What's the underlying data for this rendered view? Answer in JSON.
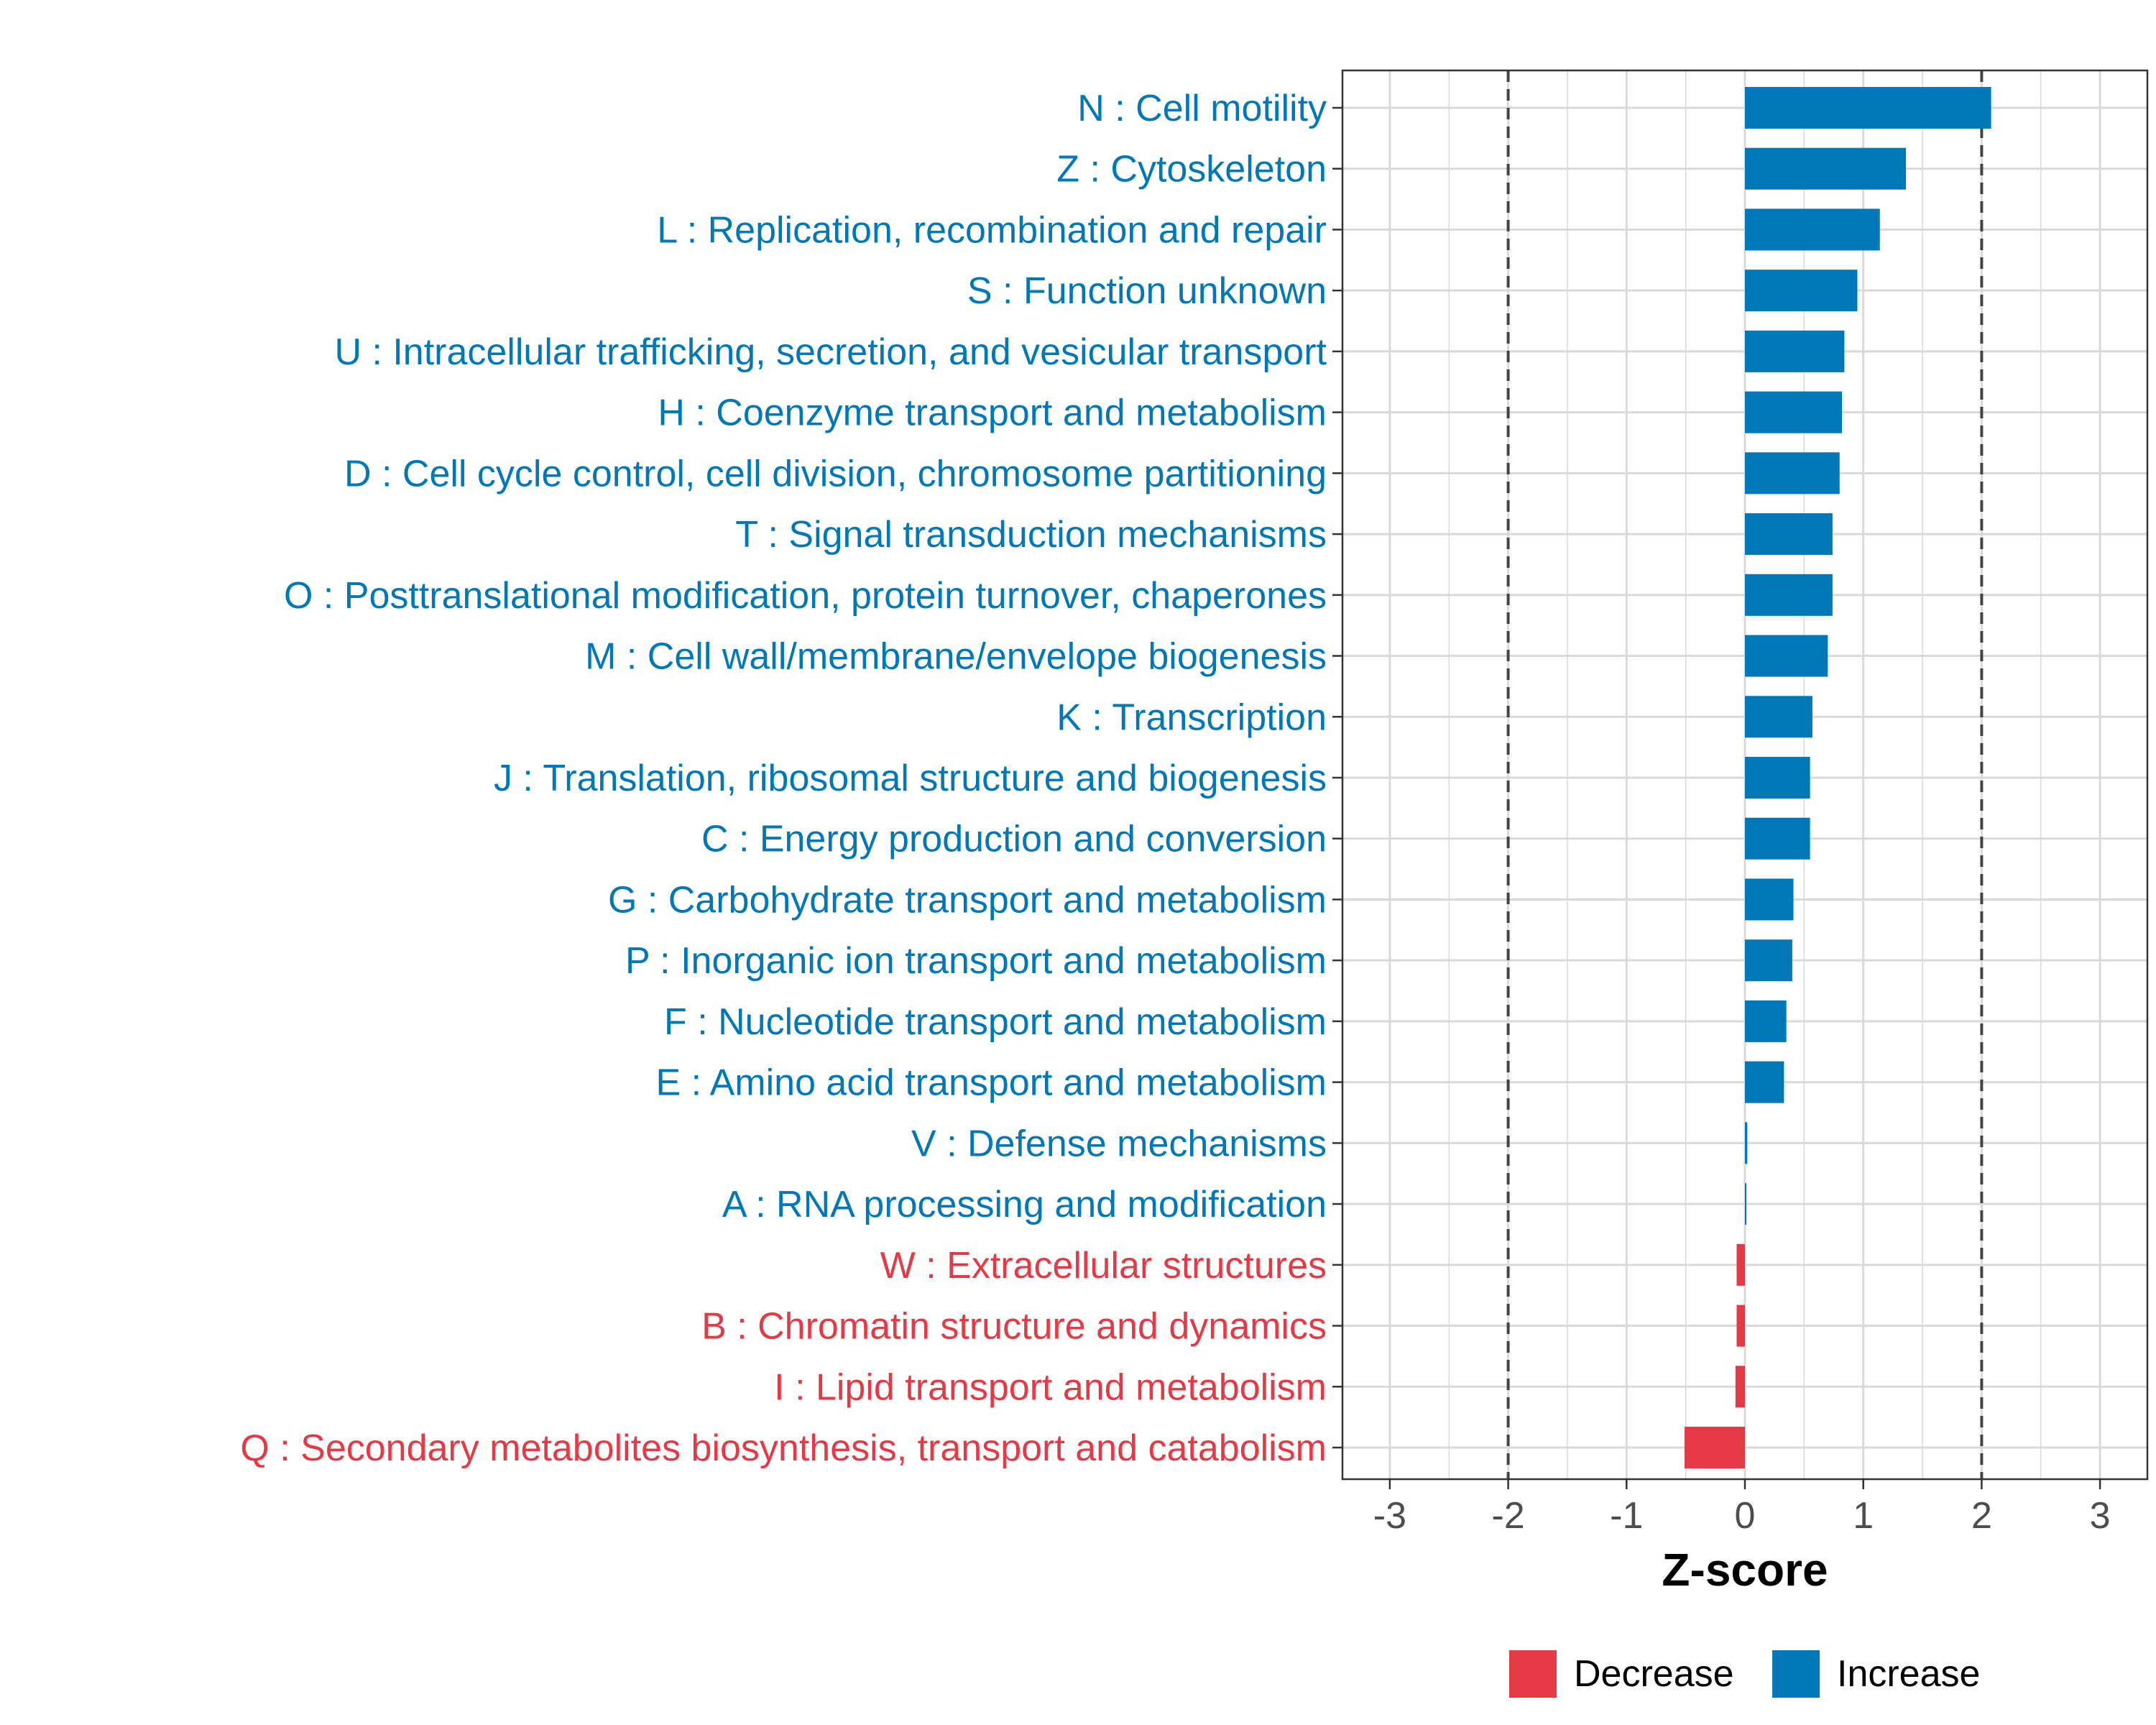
{
  "chart_data": {
    "type": "bar",
    "orientation": "horizontal",
    "title": "",
    "xlabel": "Z-score",
    "ylabel": "",
    "xlim": [
      -3.4,
      3.4
    ],
    "xticks": [
      -3,
      -2,
      -1,
      0,
      1,
      2,
      3
    ],
    "reference_lines": [
      -2,
      2
    ],
    "grid": true,
    "legend_position": "bottom",
    "colors": {
      "Decrease": "#e63946",
      "Increase": "#0077b6",
      "grid": "#d9d9d9",
      "ref_line": "#444444"
    },
    "legend": [
      {
        "name": "Decrease",
        "color": "#e63946"
      },
      {
        "name": "Increase",
        "color": "#0077b6"
      }
    ],
    "categories": [
      "N : Cell motility",
      "Z : Cytoskeleton",
      "L : Replication, recombination and repair",
      "S : Function unknown",
      "U : Intracellular trafficking, secretion, and vesicular transport",
      "H : Coenzyme transport and metabolism",
      "D : Cell cycle control, cell division, chromosome partitioning",
      "T : Signal transduction mechanisms",
      "O : Posttranslational modification, protein turnover, chaperones",
      "M : Cell wall/membrane/envelope biogenesis",
      "K : Transcription",
      "J : Translation, ribosomal structure and biogenesis",
      "C : Energy production and conversion",
      "G : Carbohydrate transport and metabolism",
      "P : Inorganic ion transport and metabolism",
      "F : Nucleotide transport and metabolism",
      "E : Amino acid transport and metabolism",
      "V : Defense mechanisms",
      "A : RNA processing and modification",
      "W : Extracellular structures",
      "B : Chromatin structure and dynamics",
      "I : Lipid transport and metabolism",
      "Q : Secondary metabolites biosynthesis, transport and catabolism"
    ],
    "values": [
      2.08,
      1.36,
      1.14,
      0.95,
      0.84,
      0.82,
      0.8,
      0.74,
      0.74,
      0.7,
      0.57,
      0.55,
      0.55,
      0.41,
      0.4,
      0.35,
      0.33,
      0.02,
      0.01,
      -0.07,
      -0.07,
      -0.08,
      -0.51
    ],
    "groups": [
      "Increase",
      "Increase",
      "Increase",
      "Increase",
      "Increase",
      "Increase",
      "Increase",
      "Increase",
      "Increase",
      "Increase",
      "Increase",
      "Increase",
      "Increase",
      "Increase",
      "Increase",
      "Increase",
      "Increase",
      "Increase",
      "Increase",
      "Decrease",
      "Decrease",
      "Decrease",
      "Decrease"
    ]
  }
}
